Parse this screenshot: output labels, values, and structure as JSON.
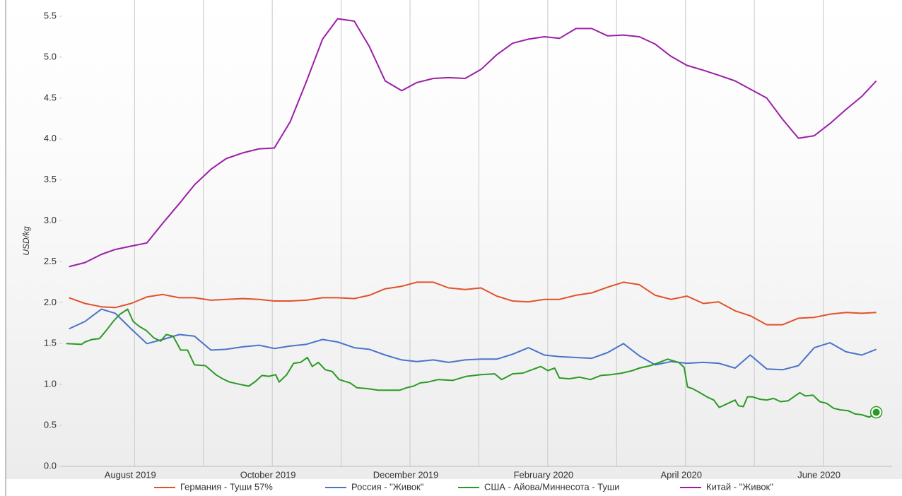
{
  "chart_data": {
    "type": "line",
    "y_label": "USD/kg",
    "xlim": [
      -0.05,
      12
    ],
    "xticks": [
      {
        "value": 1,
        "label": "August 2019"
      },
      {
        "value": 3,
        "label": "October 2019"
      },
      {
        "value": 5,
        "label": "December 2019"
      },
      {
        "value": 7,
        "label": "February 2020"
      },
      {
        "value": 9,
        "label": "April 2020"
      },
      {
        "value": 11,
        "label": "June 2020"
      }
    ],
    "xminor": [
      2,
      4,
      6,
      8,
      10
    ],
    "ylim": [
      0,
      5.5
    ],
    "yticks": [
      {
        "value": 0,
        "label": "0.0"
      },
      0.5,
      {
        "value": 1,
        "label": "1.0"
      },
      1.5,
      {
        "value": 2,
        "label": "2.0"
      },
      2.5,
      {
        "value": 3,
        "label": "3.0"
      },
      3.5,
      {
        "value": 4,
        "label": "4.0"
      },
      4.5,
      {
        "value": 5,
        "label": "5.0"
      },
      5.5
    ],
    "grid": "x",
    "legend": "bottom",
    "x": [
      0.05,
      0.28,
      0.52,
      0.72,
      0.95,
      1.18,
      1.41,
      1.65,
      1.87,
      2.11,
      2.33,
      2.57,
      2.81,
      3.03,
      3.26,
      3.49,
      3.73,
      3.95,
      4.19,
      4.41,
      4.64,
      4.88,
      5.1,
      5.34,
      5.56,
      5.8,
      6.03,
      6.26,
      6.49,
      6.72,
      6.95,
      7.17,
      7.41,
      7.64,
      7.87,
      8.1,
      8.33,
      8.56,
      8.79,
      9.02,
      9.26,
      9.48,
      9.72,
      9.94,
      10.18,
      10.41,
      10.64,
      10.87,
      11.1,
      11.33,
      11.56,
      11.77
    ],
    "series": [
      {
        "name": "Германия - Туши 57%",
        "color": "#e0522c",
        "values": [
          2.06,
          1.99,
          1.95,
          1.94,
          1.99,
          2.07,
          2.1,
          2.06,
          2.06,
          2.03,
          2.04,
          2.05,
          2.04,
          2.02,
          2.02,
          2.03,
          2.06,
          2.06,
          2.05,
          2.09,
          2.17,
          2.2,
          2.25,
          2.25,
          2.18,
          2.16,
          2.18,
          2.08,
          2.02,
          2.01,
          2.04,
          2.04,
          2.09,
          2.12,
          2.19,
          2.25,
          2.22,
          2.09,
          2.04,
          2.08,
          1.99,
          2.01,
          1.9,
          1.84,
          1.73,
          1.73,
          1.81,
          1.82,
          1.86,
          1.88,
          1.87,
          1.88
        ]
      },
      {
        "name": "Россия - \"Живок\"",
        "color": "#4a74c9",
        "values": [
          1.68,
          1.77,
          1.92,
          1.87,
          1.68,
          1.5,
          1.55,
          1.61,
          1.59,
          1.42,
          1.43,
          1.46,
          1.48,
          1.44,
          1.47,
          1.49,
          1.55,
          1.52,
          1.45,
          1.43,
          1.36,
          1.3,
          1.28,
          1.3,
          1.27,
          1.3,
          1.31,
          1.31,
          1.37,
          1.45,
          1.36,
          1.34,
          1.33,
          1.32,
          1.39,
          1.5,
          1.35,
          1.24,
          1.28,
          1.26,
          1.27,
          1.26,
          1.2,
          1.36,
          1.19,
          1.18,
          1.23,
          1.45,
          1.51,
          1.4,
          1.36,
          1.43
        ]
      },
      {
        "name": "США - Айова/Миннесота - Туши",
        "color": "#2b9a24",
        "marker_last": true,
        "x": [
          0.01,
          0.23,
          0.28,
          0.38,
          0.49,
          0.59,
          0.69,
          0.79,
          0.9,
          0.98,
          1.07,
          1.17,
          1.28,
          1.38,
          1.46,
          1.56,
          1.67,
          1.77,
          1.87,
          2.03,
          2.18,
          2.28,
          2.38,
          2.54,
          2.66,
          2.76,
          2.85,
          2.95,
          3.05,
          3.1,
          3.21,
          3.31,
          3.41,
          3.51,
          3.58,
          3.67,
          3.77,
          3.87,
          3.97,
          4.13,
          4.23,
          4.38,
          4.54,
          4.69,
          4.85,
          4.95,
          5.05,
          5.15,
          5.26,
          5.41,
          5.62,
          5.82,
          6.03,
          6.23,
          6.33,
          6.49,
          6.64,
          6.8,
          6.9,
          7.0,
          7.1,
          7.17,
          7.31,
          7.46,
          7.62,
          7.77,
          7.92,
          8.08,
          8.23,
          8.33,
          8.49,
          8.59,
          8.74,
          8.9,
          8.98,
          9.03,
          9.1,
          9.21,
          9.31,
          9.41,
          9.49,
          9.62,
          9.72,
          9.77,
          9.84,
          9.9,
          9.97,
          10.08,
          10.18,
          10.28,
          10.38,
          10.49,
          10.59,
          10.66,
          10.74,
          10.85,
          10.95,
          11.05,
          11.15,
          11.25,
          11.36,
          11.46,
          11.56,
          11.67,
          11.77
        ],
        "values": [
          1.5,
          1.49,
          1.52,
          1.55,
          1.56,
          1.66,
          1.77,
          1.86,
          1.92,
          1.77,
          1.71,
          1.66,
          1.57,
          1.53,
          1.61,
          1.59,
          1.42,
          1.42,
          1.24,
          1.23,
          1.12,
          1.07,
          1.03,
          1.0,
          0.98,
          1.04,
          1.11,
          1.1,
          1.12,
          1.03,
          1.12,
          1.26,
          1.27,
          1.33,
          1.22,
          1.27,
          1.18,
          1.16,
          1.06,
          1.02,
          0.96,
          0.95,
          0.93,
          0.93,
          0.93,
          0.96,
          0.98,
          1.02,
          1.03,
          1.06,
          1.05,
          1.1,
          1.12,
          1.13,
          1.06,
          1.13,
          1.14,
          1.19,
          1.22,
          1.17,
          1.2,
          1.08,
          1.07,
          1.09,
          1.06,
          1.11,
          1.12,
          1.14,
          1.17,
          1.2,
          1.23,
          1.26,
          1.31,
          1.27,
          1.21,
          0.97,
          0.95,
          0.9,
          0.85,
          0.81,
          0.72,
          0.77,
          0.81,
          0.74,
          0.73,
          0.85,
          0.85,
          0.82,
          0.81,
          0.83,
          0.79,
          0.8,
          0.86,
          0.9,
          0.86,
          0.87,
          0.79,
          0.77,
          0.71,
          0.69,
          0.68,
          0.64,
          0.63,
          0.6,
          0.66
        ]
      },
      {
        "name": "Китай - \"Живок\"",
        "color": "#9b1fa6",
        "values": [
          2.44,
          2.49,
          2.59,
          2.65,
          2.69,
          2.73,
          2.97,
          3.21,
          3.44,
          3.63,
          3.76,
          3.83,
          3.88,
          3.89,
          4.21,
          4.69,
          5.22,
          5.47,
          5.44,
          5.13,
          4.71,
          4.59,
          4.69,
          4.74,
          4.75,
          4.74,
          4.85,
          5.03,
          5.17,
          5.22,
          5.25,
          5.23,
          5.35,
          5.35,
          5.26,
          5.27,
          5.25,
          5.16,
          5.01,
          4.9,
          4.84,
          4.78,
          4.71,
          4.61,
          4.5,
          4.24,
          4.01,
          4.04,
          4.19,
          4.36,
          4.52,
          4.71
        ]
      }
    ]
  }
}
